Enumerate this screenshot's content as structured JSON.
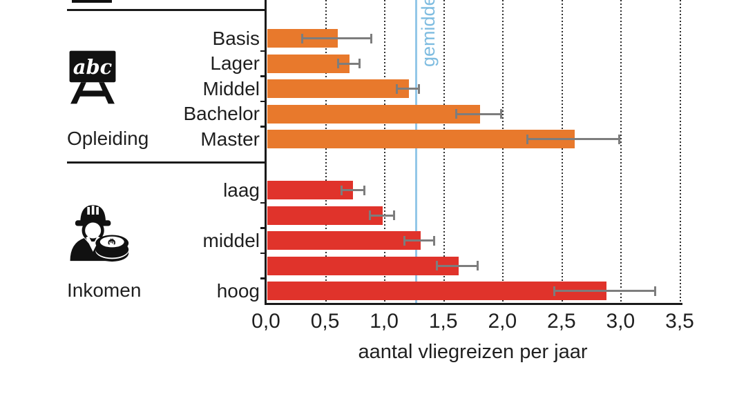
{
  "chart_data": {
    "type": "bar",
    "orientation": "horizontal",
    "xlabel": "aantal vliegreizen per jaar",
    "x_ticks": [
      "0,0",
      "0,5",
      "1,0",
      "1,5",
      "2,0",
      "2,5",
      "3,0",
      "3,5"
    ],
    "xlim": [
      0,
      3.5
    ],
    "grid": "vertical dotted lines every 0.5, on",
    "reference_line": {
      "value": 1.3,
      "label": "gemiddelde"
    },
    "groups": [
      {
        "name": "Opleiding",
        "icon": "chalkboard-abc-icon",
        "bar_color": "#E8792C",
        "bars": [
          {
            "label": "Basis",
            "value": 0.6,
            "ci_low": 0.3,
            "ci_high": 0.9
          },
          {
            "label": "Lager",
            "value": 0.7,
            "ci_low": 0.6,
            "ci_high": 0.8
          },
          {
            "label": "Middel",
            "value": 1.2,
            "ci_low": 1.1,
            "ci_high": 1.3
          },
          {
            "label": "Bachelor",
            "value": 1.8,
            "ci_low": 1.6,
            "ci_high": 2.0
          },
          {
            "label": "Master",
            "value": 2.6,
            "ci_low": 2.2,
            "ci_high": 3.0
          }
        ]
      },
      {
        "name": "Inkomen",
        "icon": "worker-coins-icon",
        "bar_color": "#E0332B",
        "bars": [
          {
            "label": "laag",
            "value": 0.73,
            "ci_low": 0.63,
            "ci_high": 0.84
          },
          {
            "label": "",
            "value": 0.98,
            "ci_low": 0.87,
            "ci_high": 1.09
          },
          {
            "label": "middel",
            "value": 1.3,
            "ci_low": 1.16,
            "ci_high": 1.43
          },
          {
            "label": "",
            "value": 1.62,
            "ci_low": 1.44,
            "ci_high": 1.8
          },
          {
            "label": "hoog",
            "value": 2.87,
            "ci_low": 2.43,
            "ci_high": 3.3
          }
        ]
      }
    ]
  },
  "colors": {
    "orange": "#E8792C",
    "red": "#E0332B",
    "reference_line": "#93C7E8",
    "reference_text": "#7EBCE0",
    "error_bar": "#7D7D7D",
    "axis": "#1A1A1A",
    "text": "#1F1F1F"
  },
  "icons": {
    "chalkboard_text": "abc",
    "coin_symbol": "€"
  }
}
